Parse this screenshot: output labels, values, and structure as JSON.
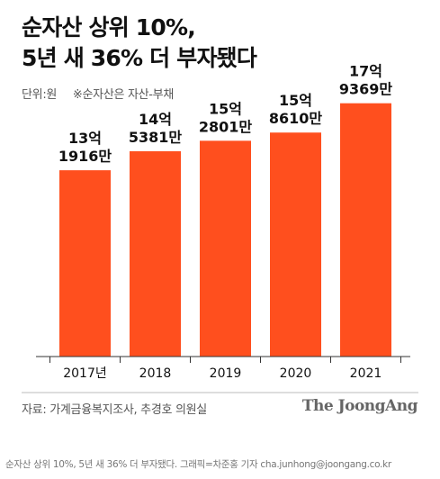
{
  "header": {
    "title_line1": "순자산 상위 10%,",
    "title_line2": "5년 새 36% 더 부자됐다",
    "unit": "단위:원",
    "note": "※순자산은 자산-부채"
  },
  "chart_data": {
    "type": "bar",
    "categories": [
      "2017년",
      "2018",
      "2019",
      "2020",
      "2021"
    ],
    "values": [
      1319160000,
      1453810000,
      1528010000,
      1586100000,
      1793690000
    ],
    "label_line1": [
      "13억",
      "14억",
      "15억",
      "15억",
      "17억"
    ],
    "label_line2": [
      "1916만",
      "5381만",
      "2801만",
      "8610만",
      "9369만"
    ],
    "ylim": [
      0,
      1900000000
    ],
    "bar_color": "#ff4f1e",
    "grid": false
  },
  "footer": {
    "source": "자료: 가계금융복지조사, 추경호 의원실",
    "brand": "The JoongAng",
    "caption": "순자산 상위 10%, 5년 새 36% 더 부자됐다. 그래픽=차준홍 기자 cha.junhong@joongang.co.kr"
  }
}
